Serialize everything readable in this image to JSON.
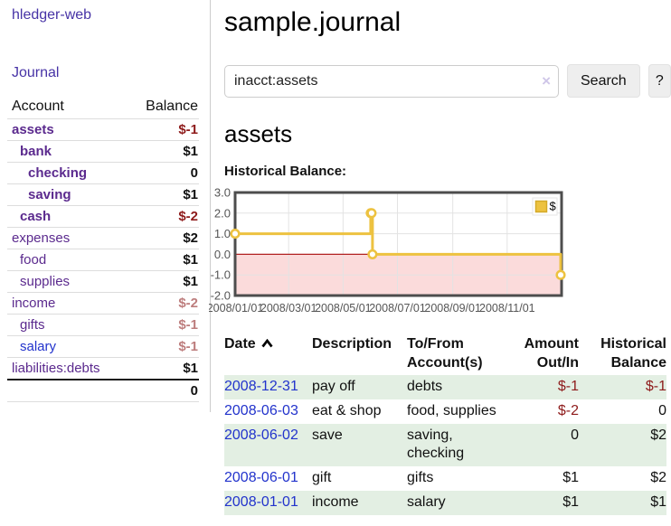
{
  "colors": {
    "title_purple": "#4733a6",
    "account_purple": "#5b2a8e",
    "blue_link": "#2233cc",
    "strong_negative": "#8e1b1b",
    "muted_negative": "#bd7d7d",
    "row_green": "#e3efe3",
    "chart_gold": "#edc240",
    "chart_gold_dark": "#d4a928",
    "negative_region": "#fbdbdb",
    "zero_line": "#b22222",
    "chart_border": "#4d4d4d",
    "grid_line": "#e3e3e3",
    "tick_text": "#555555",
    "button_bg": "#eeeeee",
    "input_border": "#cccccc",
    "clear_icon": "#cfc6e8"
  },
  "sidebar": {
    "app_title": "hledger-web",
    "journal_label": "Journal",
    "table": {
      "account_header": "Account",
      "balance_header": "Balance",
      "rows": [
        {
          "name": "assets",
          "depth": 1,
          "bold": true,
          "balance": "$-1",
          "neg": "strong"
        },
        {
          "name": "bank",
          "depth": 2,
          "bold": true,
          "balance": "$1"
        },
        {
          "name": "checking",
          "depth": 3,
          "bold": true,
          "balance": "0"
        },
        {
          "name": "saving",
          "depth": 3,
          "bold": true,
          "balance": "$1"
        },
        {
          "name": "cash",
          "depth": 2,
          "bold": true,
          "balance": "$-2",
          "neg": "strong"
        },
        {
          "name": "expenses",
          "depth": 1,
          "bold": false,
          "balance": "$2"
        },
        {
          "name": "food",
          "depth": 2,
          "bold": false,
          "balance": "$1"
        },
        {
          "name": "supplies",
          "depth": 2,
          "bold": false,
          "balance": "$1"
        },
        {
          "name": "income",
          "depth": 1,
          "bold": false,
          "balance": "$-2",
          "neg": "muted"
        },
        {
          "name": "gifts",
          "depth": 2,
          "bold": false,
          "balance": "$-1",
          "neg": "muted"
        },
        {
          "name": "salary",
          "depth": 2,
          "bold": false,
          "balance": "$-1",
          "neg": "muted",
          "link": "blue"
        },
        {
          "name": "liabilities:debts",
          "depth": 1,
          "bold": false,
          "balance": "$1"
        }
      ],
      "total": "0"
    }
  },
  "header": {
    "title": "sample.journal"
  },
  "search": {
    "query": "inacct:assets",
    "clear_icon": "×",
    "search_label": "Search",
    "help_label": "?"
  },
  "account_page": {
    "heading": "assets",
    "chart_label": "Historical Balance:"
  },
  "chart_data": {
    "type": "line",
    "step": true,
    "title": "Historical Balance:",
    "series": [
      {
        "name": "$",
        "points": [
          [
            "2008-01-01",
            1
          ],
          [
            "2008-06-01",
            2
          ],
          [
            "2008-06-02",
            2
          ],
          [
            "2008-06-03",
            0
          ],
          [
            "2008-12-31",
            -1
          ]
        ]
      }
    ],
    "x_range": [
      "2008-01-01",
      "2009-01-01"
    ],
    "ylim": [
      -2,
      3
    ],
    "y_ticks": [
      "3.0",
      "2.0",
      "1.0",
      "0.0",
      "-1.0",
      "-2.0"
    ],
    "x_ticks": [
      "2008/01/01",
      "2008/03/01",
      "2008/05/01",
      "2008/07/01",
      "2008/09/01",
      "2008/11/01"
    ],
    "grid": true,
    "negative_region_shaded": true,
    "legend": {
      "position": "top-right",
      "label": "$"
    }
  },
  "register": {
    "headers": {
      "date": "Date",
      "description": "Description",
      "accounts": "To/From Account(s)",
      "amount": "Amount Out/In",
      "balance": "Historical Balance"
    },
    "rows": [
      {
        "date": "2008-12-31",
        "description": "pay off",
        "accounts": "debts",
        "amount": "$-1",
        "balance": "$-1"
      },
      {
        "date": "2008-06-03",
        "description": "eat & shop",
        "accounts": "food, supplies",
        "amount": "$-2",
        "balance": "0"
      },
      {
        "date": "2008-06-02",
        "description": "save",
        "accounts": "saving, checking",
        "amount": "0",
        "balance": "$2"
      },
      {
        "date": "2008-06-01",
        "description": "gift",
        "accounts": "gifts",
        "amount": "$1",
        "balance": "$2"
      },
      {
        "date": "2008-01-01",
        "description": "income",
        "accounts": "salary",
        "amount": "$1",
        "balance": "$1"
      }
    ]
  }
}
